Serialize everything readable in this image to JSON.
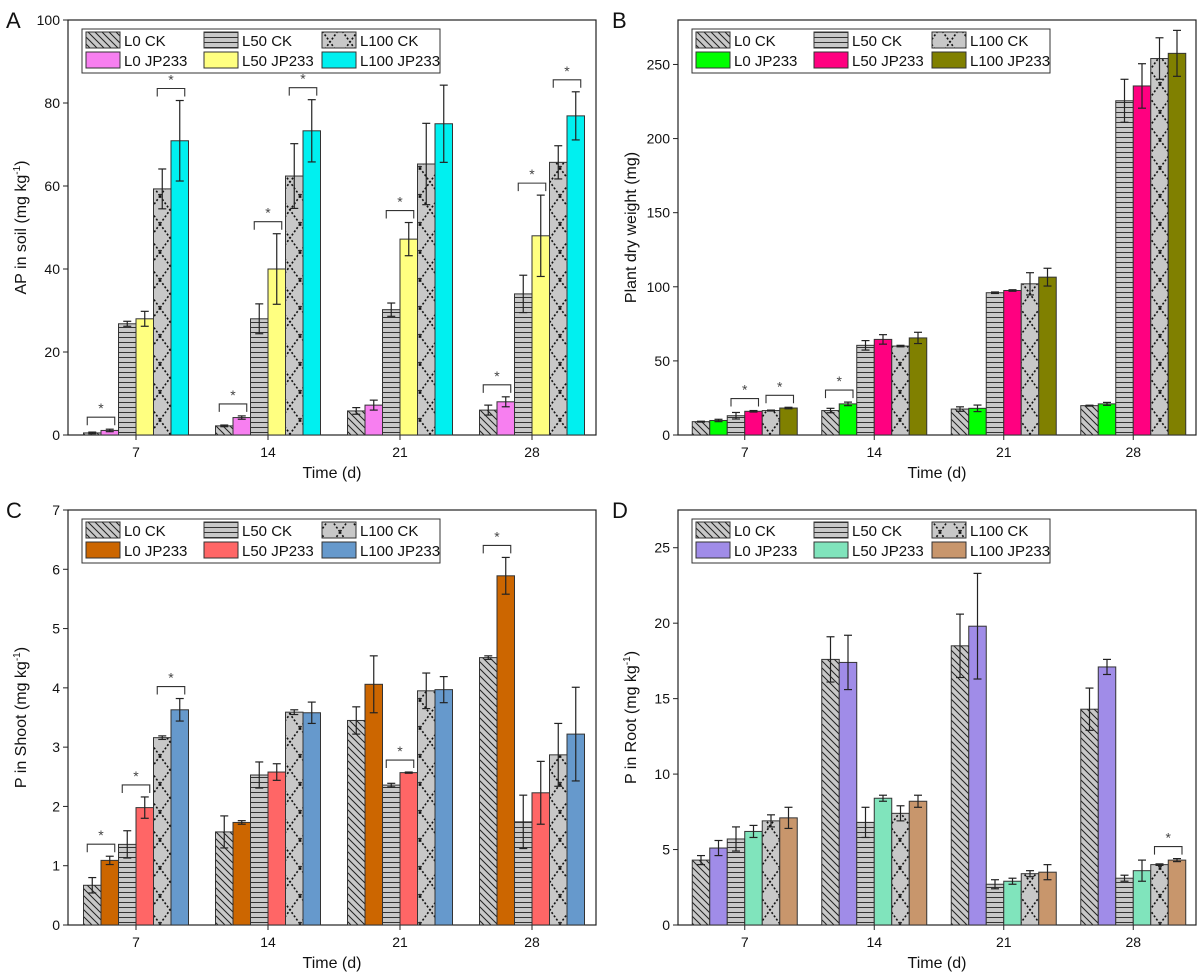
{
  "chart_data": [
    {
      "panel": "A",
      "type": "bar",
      "title": "",
      "xlabel": "Time (d)",
      "ylabel": "AP in soil (mg kg-1)",
      "ylabel_main": "AP in soil (mg kg",
      "ylabel_sup": "-1",
      "ylabel_end": ")",
      "ylim": [
        0,
        100
      ],
      "yticks": [
        0,
        20,
        40,
        60,
        80,
        100
      ],
      "categories": [
        "7",
        "14",
        "21",
        "28"
      ],
      "legend_placement": "top-left",
      "series": [
        {
          "name": "L0 CK",
          "pattern": "diag",
          "color": "#c8c8c8",
          "values": [
            0.5,
            2.2,
            5.8,
            6.0
          ],
          "errors": [
            0.2,
            0.2,
            0.8,
            1.2
          ]
        },
        {
          "name": "L0 JP233",
          "pattern": "solid",
          "color": "#f77ff0",
          "values": [
            1.1,
            4.2,
            7.2,
            8.0
          ],
          "errors": [
            0.3,
            0.4,
            1.2,
            1.2
          ]
        },
        {
          "name": "L50 CK",
          "pattern": "horiz",
          "color": "#c8c8c8",
          "values": [
            26.8,
            28.0,
            30.2,
            34.0
          ],
          "errors": [
            0.6,
            3.6,
            1.6,
            4.5
          ]
        },
        {
          "name": "L50 JP233",
          "pattern": "solid",
          "color": "#ffff80",
          "values": [
            28.0,
            40.0,
            47.2,
            48.0
          ],
          "errors": [
            1.8,
            8.5,
            4.0,
            9.8
          ]
        },
        {
          "name": "L100 CK",
          "pattern": "cross",
          "color": "#c8c8c8",
          "values": [
            59.3,
            62.4,
            65.3,
            65.7
          ],
          "errors": [
            4.8,
            7.8,
            9.8,
            4.0
          ]
        },
        {
          "name": "L100 JP233",
          "pattern": "solid",
          "color": "#00f0f0",
          "values": [
            70.9,
            73.3,
            75.0,
            76.9
          ],
          "errors": [
            9.7,
            7.5,
            9.3,
            5.8
          ]
        }
      ],
      "significance": [
        {
          "category": "7",
          "pair": [
            "L0 CK",
            "L0 JP233"
          ],
          "label": "*"
        },
        {
          "category": "7",
          "pair": [
            "L100 CK",
            "L100 JP233"
          ],
          "label": "*"
        },
        {
          "category": "14",
          "pair": [
            "L0 CK",
            "L0 JP233"
          ],
          "label": "*"
        },
        {
          "category": "14",
          "pair": [
            "L50 CK",
            "L50 JP233"
          ],
          "label": "*"
        },
        {
          "category": "14",
          "pair": [
            "L100 CK",
            "L100 JP233"
          ],
          "label": "*"
        },
        {
          "category": "21",
          "pair": [
            "L50 CK",
            "L50 JP233"
          ],
          "label": "*"
        },
        {
          "category": "28",
          "pair": [
            "L0 CK",
            "L0 JP233"
          ],
          "label": "*"
        },
        {
          "category": "28",
          "pair": [
            "L50 CK",
            "L50 JP233"
          ],
          "label": "*"
        },
        {
          "category": "28",
          "pair": [
            "L100 CK",
            "L100 JP233"
          ],
          "label": "*"
        }
      ]
    },
    {
      "panel": "B",
      "type": "bar",
      "title": "",
      "xlabel": "Time (d)",
      "ylabel": "Plant dry weight (mg)",
      "ylabel_main": "Plant dry weight (mg)",
      "ylabel_sup": "",
      "ylabel_end": "",
      "ylim": [
        0,
        280
      ],
      "yticks": [
        0,
        50,
        100,
        150,
        200,
        250
      ],
      "categories": [
        "7",
        "14",
        "21",
        "28"
      ],
      "legend_placement": "top-left",
      "series": [
        {
          "name": "L0 CK",
          "pattern": "diag",
          "color": "#c8c8c8",
          "values": [
            9.0,
            16.5,
            17.5,
            19.8
          ],
          "errors": [
            0.3,
            1.5,
            1.5,
            0.3
          ]
        },
        {
          "name": "L0 JP233",
          "pattern": "solid",
          "color": "#00ff00",
          "values": [
            9.8,
            21.0,
            18.0,
            21.0
          ],
          "errors": [
            0.8,
            1.2,
            2.2,
            1.0
          ]
        },
        {
          "name": "L50 CK",
          "pattern": "horiz",
          "color": "#c8c8c8",
          "values": [
            13.0,
            60.5,
            96.0,
            225.5
          ],
          "errors": [
            2.2,
            3.2,
            0.5,
            14.5
          ]
        },
        {
          "name": "L50 JP233",
          "pattern": "solid",
          "color": "#ff0080",
          "values": [
            16.0,
            64.5,
            97.5,
            235.5
          ],
          "errors": [
            0.5,
            3.2,
            0.5,
            15.0
          ]
        },
        {
          "name": "L100 CK",
          "pattern": "cross",
          "color": "#c8c8c8",
          "values": [
            16.5,
            60.0,
            102.0,
            254.0
          ],
          "errors": [
            0.3,
            0.5,
            7.5,
            14.0
          ]
        },
        {
          "name": "L100 JP233",
          "pattern": "solid",
          "color": "#808000",
          "values": [
            18.2,
            65.5,
            106.5,
            257.5
          ],
          "errors": [
            0.5,
            3.8,
            6.0,
            15.5
          ]
        }
      ],
      "significance": [
        {
          "category": "7",
          "pair": [
            "L50 CK",
            "L50 JP233"
          ],
          "label": "*"
        },
        {
          "category": "7",
          "pair": [
            "L100 CK",
            "L100 JP233"
          ],
          "label": "*"
        },
        {
          "category": "14",
          "pair": [
            "L0 CK",
            "L0 JP233"
          ],
          "label": "*"
        }
      ]
    },
    {
      "panel": "C",
      "type": "bar",
      "title": "",
      "xlabel": "Time (d)",
      "ylabel": "P in Shoot (mg kg-1)",
      "ylabel_main": "P in Shoot (mg kg",
      "ylabel_sup": "-1",
      "ylabel_end": ")",
      "ylim": [
        0,
        7
      ],
      "yticks": [
        0,
        1,
        2,
        3,
        4,
        5,
        6,
        7
      ],
      "categories": [
        "7",
        "14",
        "21",
        "28"
      ],
      "legend_placement": "top-left",
      "series": [
        {
          "name": "L0 CK",
          "pattern": "diag",
          "color": "#c8c8c8",
          "values": [
            0.67,
            1.57,
            3.45,
            4.51
          ],
          "errors": [
            0.13,
            0.27,
            0.23,
            0.03
          ]
        },
        {
          "name": "L0 JP233",
          "pattern": "solid",
          "color": "#cc6600",
          "values": [
            1.09,
            1.73,
            4.06,
            5.89
          ],
          "errors": [
            0.07,
            0.03,
            0.48,
            0.31
          ]
        },
        {
          "name": "L50 CK",
          "pattern": "horiz",
          "color": "#c8c8c8",
          "values": [
            1.36,
            2.53,
            2.36,
            1.74
          ],
          "errors": [
            0.23,
            0.22,
            0.03,
            0.45
          ]
        },
        {
          "name": "L50 JP233",
          "pattern": "solid",
          "color": "#ff6666",
          "values": [
            1.98,
            2.58,
            2.57,
            2.23
          ],
          "errors": [
            0.18,
            0.14,
            0.01,
            0.53
          ]
        },
        {
          "name": "L100 CK",
          "pattern": "cross",
          "color": "#c8c8c8",
          "values": [
            3.16,
            3.59,
            3.95,
            2.87
          ],
          "errors": [
            0.03,
            0.04,
            0.3,
            0.53
          ]
        },
        {
          "name": "L100 JP233",
          "pattern": "solid",
          "color": "#6699cc",
          "values": [
            3.63,
            3.58,
            3.97,
            3.22
          ],
          "errors": [
            0.19,
            0.18,
            0.22,
            0.79
          ]
        }
      ],
      "significance": [
        {
          "category": "7",
          "pair": [
            "L0 CK",
            "L0 JP233"
          ],
          "label": "*"
        },
        {
          "category": "7",
          "pair": [
            "L50 CK",
            "L50 JP233"
          ],
          "label": "*"
        },
        {
          "category": "7",
          "pair": [
            "L100 CK",
            "L100 JP233"
          ],
          "label": "*"
        },
        {
          "category": "21",
          "pair": [
            "L50 CK",
            "L50 JP233"
          ],
          "label": "*"
        },
        {
          "category": "28",
          "pair": [
            "L0 CK",
            "L0 JP233"
          ],
          "label": "*"
        }
      ]
    },
    {
      "panel": "D",
      "type": "bar",
      "title": "",
      "xlabel": "Time (d)",
      "ylabel": "P in Root (mg kg-1)",
      "ylabel_main": "P in Root (mg kg",
      "ylabel_sup": "-1",
      "ylabel_end": ")",
      "ylim": [
        0,
        27.5
      ],
      "yticks": [
        0,
        5,
        10,
        15,
        20,
        25
      ],
      "categories": [
        "7",
        "14",
        "21",
        "28"
      ],
      "legend_placement": "top-left",
      "series": [
        {
          "name": "L0 CK",
          "pattern": "diag",
          "color": "#c8c8c8",
          "values": [
            4.3,
            17.6,
            18.5,
            14.3
          ],
          "errors": [
            0.3,
            1.5,
            2.1,
            1.4
          ]
        },
        {
          "name": "L0 JP233",
          "pattern": "solid",
          "color": "#a08ce8",
          "values": [
            5.1,
            17.4,
            19.8,
            17.1
          ],
          "errors": [
            0.5,
            1.8,
            3.5,
            0.5
          ]
        },
        {
          "name": "L50 CK",
          "pattern": "horiz",
          "color": "#c8c8c8",
          "values": [
            5.7,
            6.8,
            2.7,
            3.1
          ],
          "errors": [
            0.8,
            1.0,
            0.3,
            0.2
          ]
        },
        {
          "name": "L50 JP233",
          "pattern": "solid",
          "color": "#80e4bc",
          "values": [
            6.2,
            8.4,
            2.9,
            3.6
          ],
          "errors": [
            0.4,
            0.2,
            0.2,
            0.7
          ]
        },
        {
          "name": "L100 CK",
          "pattern": "cross",
          "color": "#c8c8c8",
          "values": [
            6.9,
            7.4,
            3.4,
            4.0
          ],
          "errors": [
            0.4,
            0.5,
            0.2,
            0.05
          ]
        },
        {
          "name": "L100 JP233",
          "pattern": "solid",
          "color": "#c8966c",
          "values": [
            7.1,
            8.2,
            3.5,
            4.3
          ],
          "errors": [
            0.7,
            0.4,
            0.5,
            0.1
          ]
        }
      ],
      "significance": [
        {
          "category": "28",
          "pair": [
            "L100 CK",
            "L100 JP233"
          ],
          "label": "*"
        }
      ]
    }
  ]
}
